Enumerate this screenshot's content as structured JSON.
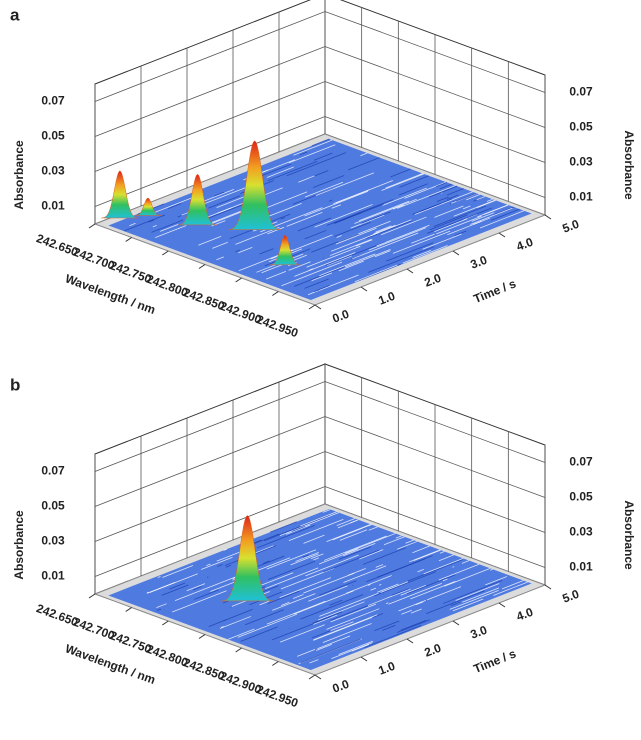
{
  "chart_data": [
    {
      "type": "surface3d",
      "panel_label": "a",
      "z_label": "Absorbance",
      "x_label": "Wavelength / nm",
      "y_label": "Time / s",
      "xlim": [
        242.65,
        242.95
      ],
      "xticks": [
        {
          "value": 242.65,
          "label": "242.650"
        },
        {
          "value": 242.7,
          "label": "242.700"
        },
        {
          "value": 242.75,
          "label": "242.750"
        },
        {
          "value": 242.8,
          "label": "242.800"
        },
        {
          "value": 242.85,
          "label": "242.850"
        },
        {
          "value": 242.9,
          "label": "242.900"
        },
        {
          "value": 242.95,
          "label": "242.950"
        }
      ],
      "ylim": [
        0,
        5
      ],
      "yticks": [
        {
          "value": 0,
          "label": "0.0"
        },
        {
          "value": 1,
          "label": "1.0"
        },
        {
          "value": 2,
          "label": "2.0"
        },
        {
          "value": 3,
          "label": "3.0"
        },
        {
          "value": 4,
          "label": "4.0"
        },
        {
          "value": 5,
          "label": "5.0"
        }
      ],
      "zlim": [
        0,
        0.08
      ],
      "zticks": [
        0.01,
        0.03,
        0.05,
        0.07
      ],
      "peaks": {
        "x": [
          242.657,
          242.672,
          242.724,
          242.773,
          242.857
        ],
        "y": [
          0.43,
          0.8,
          1.05,
          1.51,
          0.83
        ],
        "z": [
          0.027,
          0.01,
          0.029,
          0.051,
          0.017
        ]
      }
    },
    {
      "type": "surface3d",
      "panel_label": "b",
      "z_label": "Absorbance",
      "x_label": "Wavelength / nm",
      "y_label": "Time / s",
      "xlim": [
        242.65,
        242.95
      ],
      "xticks": [
        {
          "value": 242.65,
          "label": "242.650"
        },
        {
          "value": 242.7,
          "label": "242.700"
        },
        {
          "value": 242.75,
          "label": "242.750"
        },
        {
          "value": 242.8,
          "label": "242.800"
        },
        {
          "value": 242.85,
          "label": "242.850"
        },
        {
          "value": 242.9,
          "label": "242.900"
        },
        {
          "value": 242.95,
          "label": "242.950"
        }
      ],
      "ylim": [
        0,
        5
      ],
      "yticks": [
        {
          "value": 0,
          "label": "0.0"
        },
        {
          "value": 1,
          "label": "1.0"
        },
        {
          "value": 2,
          "label": "2.0"
        },
        {
          "value": 3,
          "label": "3.0"
        },
        {
          "value": 4,
          "label": "4.0"
        },
        {
          "value": 5,
          "label": "5.0"
        }
      ],
      "zlim": [
        0,
        0.08
      ],
      "zticks": [
        0.01,
        0.03,
        0.05,
        0.07
      ],
      "peaks": {
        "x": [
          242.77
        ],
        "y": [
          1.4
        ],
        "z": [
          0.049
        ]
      }
    }
  ]
}
